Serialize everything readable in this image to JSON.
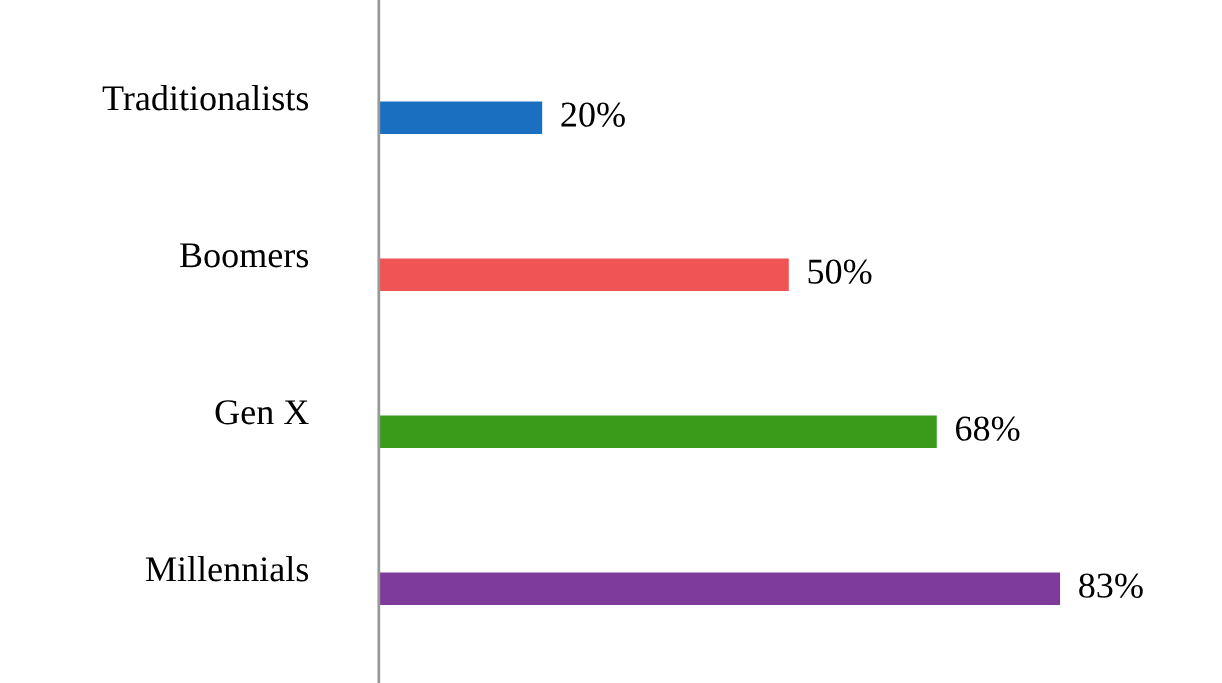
{
  "chart_data": {
    "type": "bar",
    "orientation": "horizontal",
    "categories": [
      "Traditionalists",
      "Boomers",
      "Gen X",
      "Millennials"
    ],
    "values": [
      20,
      50,
      68,
      83
    ],
    "colors": [
      "#1a6fc0",
      "#f05454",
      "#3a9a1a",
      "#7e3b9c"
    ],
    "value_labels": [
      "20%",
      "50%",
      "68%",
      "83%"
    ],
    "grid": false,
    "legend": false,
    "tick_labels": "y"
  }
}
